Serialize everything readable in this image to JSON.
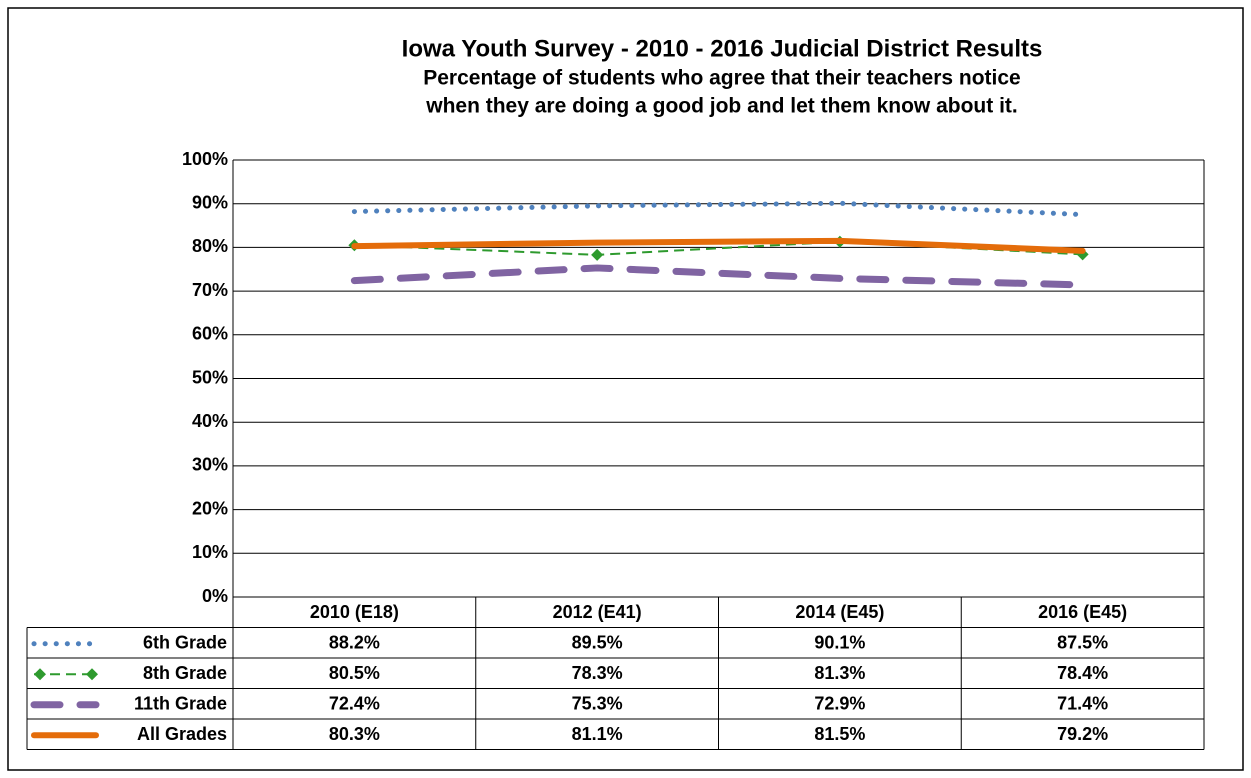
{
  "chart_data": {
    "type": "line",
    "title": "Iowa Youth Survey - 2010 - 2016 Judicial District Results",
    "subtitle": [
      "Percentage of students who agree that their teachers notice",
      "when they are doing a good job and let them know about it."
    ],
    "categories": [
      "2010 (E18)",
      "2012 (E41)",
      "2014 (E45)",
      "2016 (E45)"
    ],
    "series": [
      {
        "name": "6th Grade",
        "color": "#4f81bd",
        "dash": "dotted",
        "values": [
          88.2,
          89.5,
          90.1,
          87.5
        ],
        "value_labels": [
          "88.2%",
          "89.5%",
          "90.1%",
          "87.5%"
        ]
      },
      {
        "name": "8th Grade",
        "color": "#2e9a2e",
        "dash": "dashed",
        "marker": "diamond",
        "values": [
          80.5,
          78.3,
          81.3,
          78.4
        ],
        "value_labels": [
          "80.5%",
          "78.3%",
          "81.3%",
          "78.4%"
        ]
      },
      {
        "name": "11th Grade",
        "color": "#8064a2",
        "dash": "long-dash",
        "values": [
          72.4,
          75.3,
          72.9,
          71.4
        ],
        "value_labels": [
          "72.4%",
          "75.3%",
          "72.9%",
          "71.4%"
        ]
      },
      {
        "name": "All Grades",
        "color": "#e46c0a",
        "dash": "solid",
        "values": [
          80.3,
          81.1,
          81.5,
          79.2
        ],
        "value_labels": [
          "80.3%",
          "81.1%",
          "81.5%",
          "79.2%"
        ]
      }
    ],
    "ylim": [
      0,
      100
    ],
    "yticks": [
      {
        "value": 0,
        "label": "0%"
      },
      {
        "value": 10,
        "label": "10%"
      },
      {
        "value": 20,
        "label": "20%"
      },
      {
        "value": 30,
        "label": "30%"
      },
      {
        "value": 40,
        "label": "40%"
      },
      {
        "value": 50,
        "label": "50%"
      },
      {
        "value": 60,
        "label": "60%"
      },
      {
        "value": 70,
        "label": "70%"
      },
      {
        "value": 80,
        "label": "80%"
      },
      {
        "value": 90,
        "label": "90%"
      },
      {
        "value": 100,
        "label": "100%"
      }
    ],
    "grid": true
  }
}
